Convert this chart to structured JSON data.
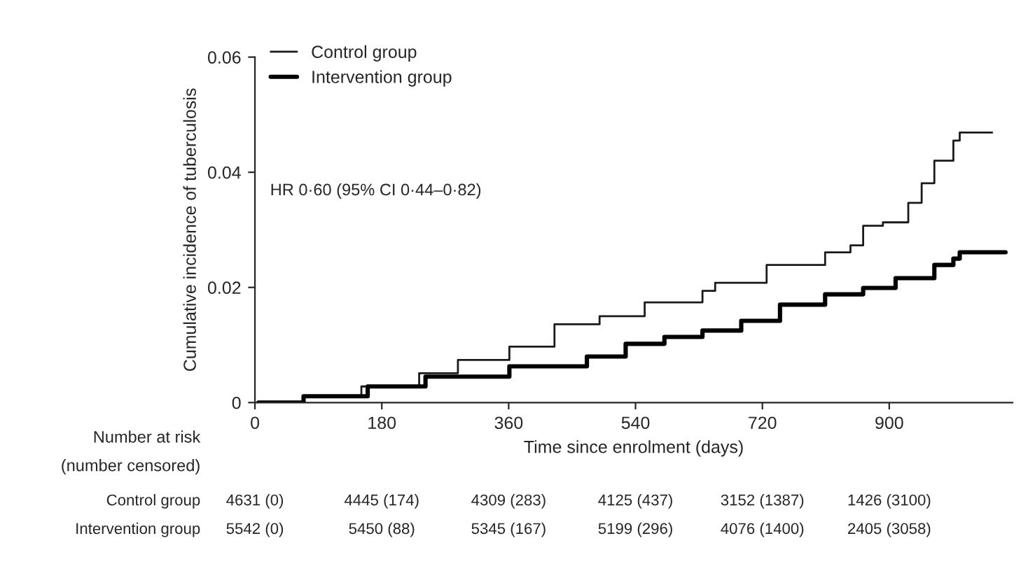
{
  "chart_data": {
    "type": "step",
    "xlabel": "Time since enrolment (days)",
    "ylabel": "Cumulative incidence of tuberculosis",
    "xlim": [
      0,
      1075
    ],
    "ylim": [
      0,
      0.06
    ],
    "xticks": [
      0,
      180,
      360,
      540,
      720,
      900
    ],
    "yticks": [
      0,
      0.02,
      0.04,
      0.06
    ],
    "series": [
      {
        "name": "Control group",
        "color": "#1a1a1a",
        "x": [
          5,
          69,
          151,
          233,
          288,
          361,
          425,
          489,
          553,
          635,
          653,
          726,
          809,
          845,
          863,
          891,
          927,
          946,
          964,
          991,
          1000,
          1046
        ],
        "values": [
          0,
          0.0011,
          0.0028,
          0.0051,
          0.0074,
          0.0097,
          0.0136,
          0.015,
          0.0174,
          0.0194,
          0.0208,
          0.0239,
          0.0261,
          0.0273,
          0.0307,
          0.0313,
          0.0347,
          0.0381,
          0.042,
          0.0455,
          0.0469,
          0.0469
        ]
      },
      {
        "name": "Intervention group",
        "color": "#000000",
        "x": [
          5,
          69,
          160,
          242,
          361,
          471,
          526,
          581,
          635,
          690,
          745,
          809,
          863,
          909,
          964,
          991,
          1000,
          1065
        ],
        "values": [
          0,
          0.0011,
          0.0028,
          0.0045,
          0.0063,
          0.008,
          0.0102,
          0.0114,
          0.0125,
          0.0142,
          0.017,
          0.0188,
          0.0199,
          0.0216,
          0.0239,
          0.025,
          0.0261,
          0.0261
        ]
      }
    ],
    "legend": "top left",
    "grid": false,
    "annotations": [
      "HR 0·60 (95% CI 0·44–0·82)",
      "Number at risk",
      "(number censored)",
      "Control group",
      "4631 (0)",
      "4445 (174)",
      "4309 (283)",
      "4125 (437)",
      "3152 (1387)",
      "1426 (3100)",
      "Intervention group",
      "5542 (0)",
      "5450 (88)",
      "5345 (167)",
      "5199 (296)",
      "4076 (1400)",
      "2405 (3058)"
    ]
  }
}
